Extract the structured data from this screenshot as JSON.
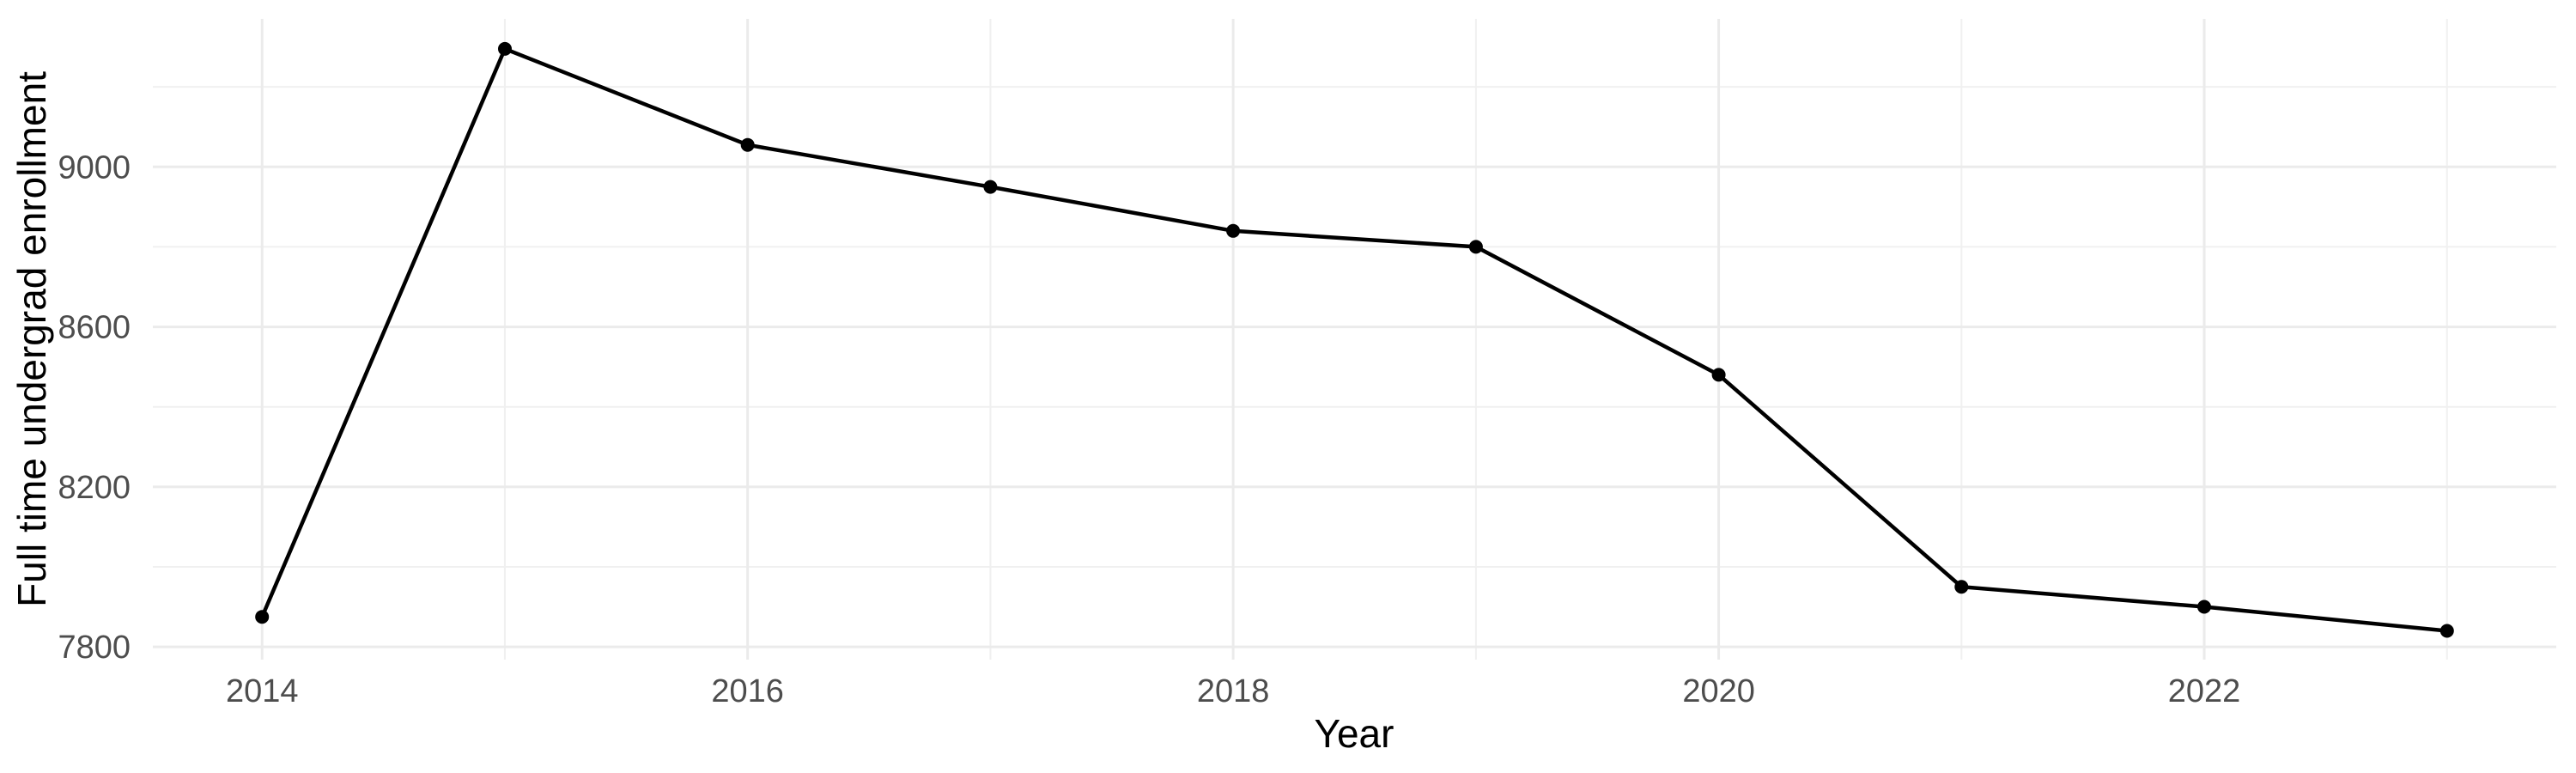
{
  "chart_data": {
    "type": "line",
    "title": "",
    "xlabel": "Year",
    "ylabel": "Full time undergrad enrollment",
    "series": [
      {
        "name": "Full time undergrad enrollment",
        "x": [
          2014,
          2015,
          2016,
          2017,
          2018,
          2019,
          2020,
          2021,
          2022,
          2023
        ],
        "values": [
          7875,
          9295,
          9055,
          8950,
          8840,
          8800,
          8480,
          7950,
          7900,
          7840
        ]
      }
    ],
    "x_ticks_major": [
      2014,
      2016,
      2018,
      2020,
      2022
    ],
    "x_ticks_minor": [
      2015,
      2017,
      2019,
      2021,
      2023
    ],
    "y_ticks_major": [
      7800,
      8200,
      8600,
      9000
    ],
    "y_ticks_minor": [
      8000,
      8400,
      8800,
      9200
    ],
    "xlim": [
      2013.55,
      2023.45
    ],
    "ylim": [
      7768,
      9370
    ],
    "grid": "major-and-minor",
    "legend": "none",
    "marker": "filled-circle",
    "colors": {
      "line": "#000000",
      "point": "#000000",
      "grid_major": "#EBEBEB",
      "grid_minor": "#F0F0F0",
      "tick_label": "#4D4D4D",
      "axis_title": "#000000",
      "background": "#FFFFFF"
    }
  }
}
